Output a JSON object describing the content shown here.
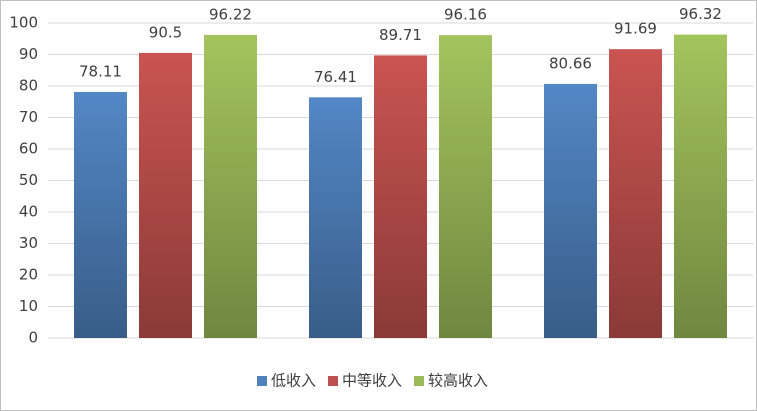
{
  "chart_data": {
    "type": "bar",
    "categories": [
      null,
      null,
      null
    ],
    "series": [
      {
        "name": "低收入",
        "color": "#4f81bd",
        "values": [
          78.11,
          76.41,
          80.66
        ]
      },
      {
        "name": "中等收入",
        "color": "#c0504d",
        "values": [
          90.5,
          89.71,
          91.69
        ]
      },
      {
        "name": "较高收入",
        "color": "#9bbb59",
        "values": [
          96.22,
          96.16,
          96.32
        ]
      }
    ],
    "ylim": [
      0,
      100
    ],
    "yticks": [
      0,
      10,
      20,
      30,
      40,
      50,
      60,
      70,
      80,
      90,
      100
    ],
    "grid": true,
    "legend": "bottom"
  }
}
